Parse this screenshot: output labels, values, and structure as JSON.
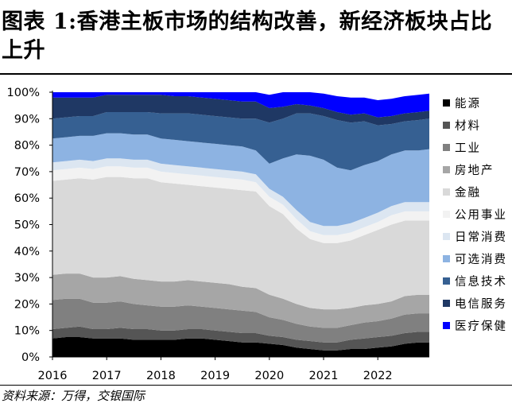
{
  "title_text": "图表 1:香港主板市场的结构改善，新经济板块占比上升",
  "source_text": "资料来源：万得，交银国际",
  "chart_data": {
    "type": "area",
    "stacked": true,
    "title": "图表 1:香港主板市场的结构改善，新经济板块占比上升",
    "xlabel": "",
    "ylabel": "",
    "ylim": [
      0,
      100
    ],
    "yticks": [
      "0%",
      "10%",
      "20%",
      "30%",
      "40%",
      "50%",
      "60%",
      "70%",
      "80%",
      "90%",
      "100%"
    ],
    "xticks": [
      "2016",
      "2017",
      "2018",
      "2019",
      "2020",
      "2021",
      "2022"
    ],
    "xlim": [
      2016,
      2022.95
    ],
    "legend_position": "right",
    "x": [
      2016.0,
      2016.25,
      2016.5,
      2016.75,
      2017.0,
      2017.25,
      2017.5,
      2017.75,
      2018.0,
      2018.25,
      2018.5,
      2018.75,
      2019.0,
      2019.25,
      2019.5,
      2019.75,
      2020.0,
      2020.25,
      2020.5,
      2020.75,
      2021.0,
      2021.25,
      2021.5,
      2021.75,
      2022.0,
      2022.25,
      2022.5,
      2022.75,
      2022.95
    ],
    "series": [
      {
        "name": "能源",
        "color": "#000000",
        "values": [
          7,
          7.5,
          7.5,
          7,
          7,
          7,
          6.5,
          6.5,
          6.5,
          6.5,
          7,
          7,
          6.5,
          6,
          5.5,
          5.5,
          5,
          4.5,
          3.5,
          3,
          2.5,
          2.5,
          3,
          3,
          3.5,
          4,
          5,
          5.5,
          5.5
        ]
      },
      {
        "name": "材料",
        "color": "#555555",
        "values": [
          3.5,
          3.5,
          4,
          3.5,
          3.5,
          4,
          4,
          4,
          3.5,
          3.5,
          3.5,
          3.5,
          3.5,
          3.5,
          3.5,
          3.5,
          3,
          3,
          3,
          3,
          3,
          3,
          3.5,
          4,
          4,
          4,
          4,
          4,
          4
        ]
      },
      {
        "name": "工业",
        "color": "#808080",
        "values": [
          11,
          11,
          10.5,
          10,
          10,
          10,
          9.5,
          9,
          9,
          9,
          9,
          8.5,
          8.5,
          8.5,
          8.5,
          8,
          7,
          6.5,
          6,
          5.5,
          5.5,
          5.5,
          5.5,
          6,
          6,
          6.5,
          7,
          7,
          7
        ]
      },
      {
        "name": "房地产",
        "color": "#a6a6a6",
        "values": [
          9.5,
          9.5,
          9.5,
          9.5,
          9.5,
          9.5,
          9.5,
          9.5,
          9.5,
          9.5,
          9.5,
          9.5,
          9.5,
          9.5,
          9,
          9,
          8.5,
          8,
          7.5,
          7,
          7,
          7,
          6.5,
          6.5,
          6.5,
          6.5,
          7,
          7,
          7
        ]
      },
      {
        "name": "金融",
        "color": "#d9d9d9",
        "values": [
          35.5,
          35.5,
          36,
          37,
          38,
          37.5,
          38,
          38.5,
          37.5,
          37,
          36,
          36,
          36,
          36,
          36.5,
          36.5,
          33.5,
          32,
          28.5,
          26,
          25,
          25,
          25.5,
          26.5,
          28,
          29,
          28.5,
          28,
          28
        ]
      },
      {
        "name": "公用事业",
        "color": "#f2f2f2",
        "values": [
          4,
          4,
          4,
          4,
          4,
          4,
          4,
          4,
          4,
          4,
          4,
          4,
          4,
          4,
          4,
          3.5,
          3.5,
          3.5,
          3.5,
          3,
          3,
          3,
          3,
          3,
          3,
          3.5,
          3.5,
          3.5,
          3.5
        ]
      },
      {
        "name": "日常消费",
        "color": "#dce6f1",
        "values": [
          3,
          3,
          3,
          3,
          3,
          3,
          3,
          3,
          3,
          3,
          3,
          3,
          3,
          3,
          3,
          3,
          3,
          3,
          3.5,
          3.5,
          3.5,
          3.5,
          3.5,
          3.5,
          3.5,
          3.5,
          3.5,
          3.5,
          3.5
        ]
      },
      {
        "name": "可选消费",
        "color": "#8db3e2",
        "values": [
          9,
          9,
          9,
          9.5,
          9.5,
          9.5,
          9.5,
          9.5,
          9.5,
          9.5,
          9.5,
          9.5,
          9.5,
          9.5,
          9.5,
          9,
          9.5,
          14.5,
          21,
          25,
          25,
          22,
          20,
          20,
          19.5,
          19.5,
          19.5,
          19.5,
          20
        ]
      },
      {
        "name": "信息技术",
        "color": "#366092",
        "values": [
          7.5,
          7.5,
          7.5,
          7.5,
          8,
          8,
          8.5,
          8.5,
          9.5,
          10,
          10.5,
          10.5,
          10.5,
          10.5,
          10.5,
          12,
          15.5,
          15,
          15.5,
          16,
          16.5,
          18,
          18,
          16.5,
          13.5,
          11.5,
          11,
          11.5,
          11.5
        ]
      },
      {
        "name": "电信服务",
        "color": "#1f3864",
        "values": [
          8,
          7.5,
          7,
          7,
          6.5,
          6.5,
          6.5,
          6.5,
          7,
          6.5,
          6.5,
          6.5,
          6.5,
          6.5,
          6.5,
          6.5,
          5.5,
          4.5,
          3.5,
          3,
          3,
          3,
          3,
          3,
          3,
          3,
          3,
          3,
          3
        ]
      },
      {
        "name": "医疗保健",
        "color": "#0000ff",
        "values": [
          2,
          2,
          2,
          2,
          2,
          2,
          2,
          2,
          2,
          2.5,
          2.5,
          2.5,
          3,
          3,
          3.5,
          3.5,
          5,
          5.5,
          5,
          5,
          5.5,
          6,
          6.5,
          6,
          6.5,
          6.5,
          6.5,
          6.5,
          6.5
        ]
      }
    ]
  }
}
